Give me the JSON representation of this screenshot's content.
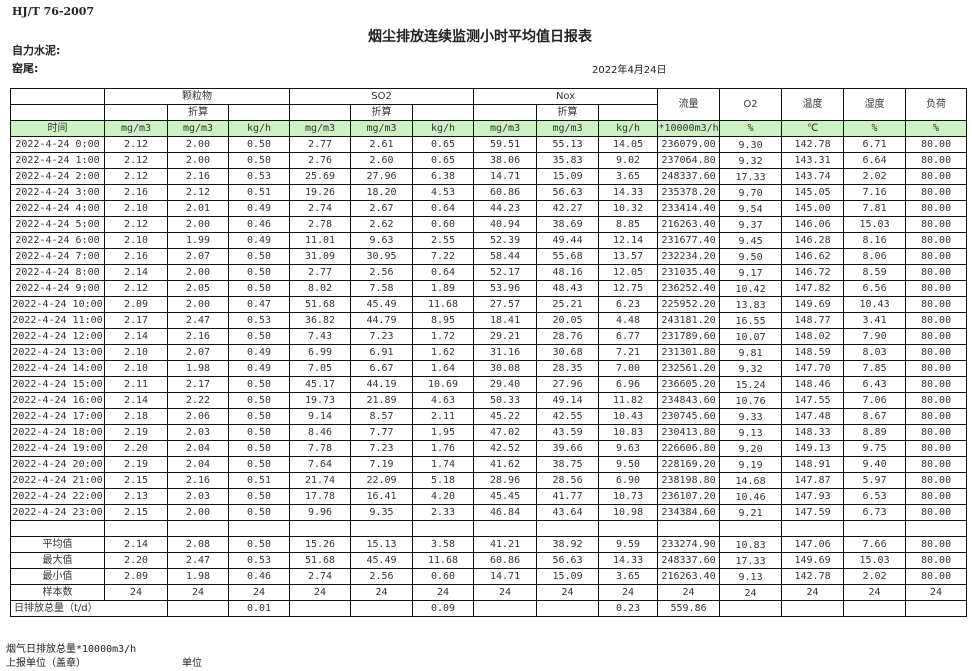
{
  "header": {
    "standard": "HJ/T  76-2007",
    "title": "烟尘排放连续监测小时平均值日报表",
    "company": "自力水泥:",
    "site": "窑尾:",
    "date": "2022年4月24日"
  },
  "table": {
    "groups": [
      "颗粒物",
      "SO2",
      "Nox"
    ],
    "converted": "折算",
    "single_headers": [
      "流量",
      "O2",
      "温度",
      "湿度",
      "负荷"
    ],
    "units": [
      "时间",
      "mg/m3",
      "mg/m3",
      "kg/h",
      "mg/m3",
      "mg/m3",
      "kg/h",
      "mg/m3",
      "mg/m3",
      "kg/h",
      "*10000m3/h",
      "%",
      "℃",
      "%",
      "%"
    ],
    "rows": [
      [
        "2022-4-24 0:00",
        "2.12",
        "2.00",
        "0.50",
        "2.77",
        "2.61",
        "0.65",
        "59.51",
        "55.13",
        "14.05",
        "236079.00",
        "9.30",
        "142.78",
        "6.71",
        "80.00"
      ],
      [
        "2022-4-24 1:00",
        "2.12",
        "2.00",
        "0.50",
        "2.76",
        "2.60",
        "0.65",
        "38.06",
        "35.83",
        "9.02",
        "237064.80",
        "9.32",
        "143.31",
        "6.64",
        "80.00"
      ],
      [
        "2022-4-24 2:00",
        "2.12",
        "2.16",
        "0.53",
        "25.69",
        "27.96",
        "6.38",
        "14.71",
        "15.09",
        "3.65",
        "248337.60",
        "17.33",
        "143.74",
        "2.02",
        "80.00"
      ],
      [
        "2022-4-24 3:00",
        "2.16",
        "2.12",
        "0.51",
        "19.26",
        "18.20",
        "4.53",
        "60.86",
        "56.63",
        "14.33",
        "235378.20",
        "9.70",
        "145.05",
        "7.16",
        "80.00"
      ],
      [
        "2022-4-24 4:00",
        "2.10",
        "2.01",
        "0.49",
        "2.74",
        "2.67",
        "0.64",
        "44.23",
        "42.27",
        "10.32",
        "233414.40",
        "9.54",
        "145.00",
        "7.81",
        "80.00"
      ],
      [
        "2022-4-24 5:00",
        "2.12",
        "2.00",
        "0.46",
        "2.78",
        "2.62",
        "0.60",
        "40.94",
        "38.69",
        "8.85",
        "216263.40",
        "9.37",
        "146.06",
        "15.03",
        "80.00"
      ],
      [
        "2022-4-24 6:00",
        "2.10",
        "1.99",
        "0.49",
        "11.01",
        "9.63",
        "2.55",
        "52.39",
        "49.44",
        "12.14",
        "231677.40",
        "9.45",
        "146.28",
        "8.16",
        "80.00"
      ],
      [
        "2022-4-24 7:00",
        "2.16",
        "2.07",
        "0.50",
        "31.09",
        "30.95",
        "7.22",
        "58.44",
        "55.68",
        "13.57",
        "232234.20",
        "9.50",
        "146.62",
        "8.06",
        "80.00"
      ],
      [
        "2022-4-24 8:00",
        "2.14",
        "2.00",
        "0.50",
        "2.77",
        "2.56",
        "0.64",
        "52.17",
        "48.16",
        "12.05",
        "231035.40",
        "9.17",
        "146.72",
        "8.59",
        "80.00"
      ],
      [
        "2022-4-24 9:00",
        "2.12",
        "2.05",
        "0.50",
        "8.02",
        "7.58",
        "1.89",
        "53.96",
        "48.43",
        "12.75",
        "236252.40",
        "10.42",
        "147.82",
        "6.56",
        "80.00"
      ],
      [
        "2022-4-24 10:00",
        "2.09",
        "2.00",
        "0.47",
        "51.68",
        "45.49",
        "11.68",
        "27.57",
        "25.21",
        "6.23",
        "225952.20",
        "13.83",
        "149.69",
        "10.43",
        "80.00"
      ],
      [
        "2022-4-24 11:00",
        "2.17",
        "2.47",
        "0.53",
        "36.82",
        "44.79",
        "8.95",
        "18.41",
        "20.05",
        "4.48",
        "243181.20",
        "16.55",
        "148.77",
        "3.41",
        "80.00"
      ],
      [
        "2022-4-24 12:00",
        "2.14",
        "2.16",
        "0.50",
        "7.43",
        "7.23",
        "1.72",
        "29.21",
        "28.76",
        "6.77",
        "231789.60",
        "10.07",
        "148.02",
        "7.90",
        "80.00"
      ],
      [
        "2022-4-24 13:00",
        "2.10",
        "2.07",
        "0.49",
        "6.99",
        "6.91",
        "1.62",
        "31.16",
        "30.68",
        "7.21",
        "231301.80",
        "9.81",
        "148.59",
        "8.03",
        "80.00"
      ],
      [
        "2022-4-24 14:00",
        "2.10",
        "1.98",
        "0.49",
        "7.05",
        "6.67",
        "1.64",
        "30.08",
        "28.35",
        "7.00",
        "232561.20",
        "9.32",
        "147.70",
        "7.85",
        "80.00"
      ],
      [
        "2022-4-24 15:00",
        "2.11",
        "2.17",
        "0.50",
        "45.17",
        "44.19",
        "10.69",
        "29.40",
        "27.96",
        "6.96",
        "236605.20",
        "15.24",
        "148.46",
        "6.43",
        "80.00"
      ],
      [
        "2022-4-24 16:00",
        "2.14",
        "2.22",
        "0.50",
        "19.73",
        "21.89",
        "4.63",
        "50.33",
        "49.14",
        "11.82",
        "234843.60",
        "10.76",
        "147.55",
        "7.06",
        "80.00"
      ],
      [
        "2022-4-24 17:00",
        "2.18",
        "2.06",
        "0.50",
        "9.14",
        "8.57",
        "2.11",
        "45.22",
        "42.55",
        "10.43",
        "230745.60",
        "9.33",
        "147.48",
        "8.67",
        "80.00"
      ],
      [
        "2022-4-24 18:00",
        "2.19",
        "2.03",
        "0.50",
        "8.46",
        "7.77",
        "1.95",
        "47.02",
        "43.59",
        "10.83",
        "230413.80",
        "9.13",
        "148.33",
        "8.89",
        "80.00"
      ],
      [
        "2022-4-24 19:00",
        "2.20",
        "2.04",
        "0.50",
        "7.78",
        "7.23",
        "1.76",
        "42.52",
        "39.66",
        "9.63",
        "226606.80",
        "9.20",
        "149.13",
        "9.75",
        "80.00"
      ],
      [
        "2022-4-24 20:00",
        "2.19",
        "2.04",
        "0.50",
        "7.64",
        "7.19",
        "1.74",
        "41.62",
        "38.75",
        "9.50",
        "228169.20",
        "9.19",
        "148.91",
        "9.40",
        "80.00"
      ],
      [
        "2022-4-24 21:00",
        "2.15",
        "2.16",
        "0.51",
        "21.74",
        "22.09",
        "5.18",
        "28.96",
        "28.56",
        "6.90",
        "238198.80",
        "14.68",
        "147.87",
        "5.97",
        "80.00"
      ],
      [
        "2022-4-24 22:00",
        "2.13",
        "2.03",
        "0.50",
        "17.78",
        "16.41",
        "4.20",
        "45.45",
        "41.77",
        "10.73",
        "236107.20",
        "10.46",
        "147.93",
        "6.53",
        "80.00"
      ],
      [
        "2022-4-24 23:00",
        "2.15",
        "2.00",
        "0.50",
        "9.96",
        "9.35",
        "2.33",
        "46.84",
        "43.64",
        "10.98",
        "234384.60",
        "9.21",
        "147.59",
        "6.73",
        "80.00"
      ]
    ],
    "summary": [
      [
        "平均值",
        "2.14",
        "2.08",
        "0.50",
        "15.26",
        "15.13",
        "3.58",
        "41.21",
        "38.92",
        "9.59",
        "233274.90",
        "10.83",
        "147.06",
        "7.66",
        "80.00"
      ],
      [
        "最大值",
        "2.20",
        "2.47",
        "0.53",
        "51.68",
        "45.49",
        "11.68",
        "60.86",
        "56.63",
        "14.33",
        "248337.60",
        "17.33",
        "149.69",
        "15.03",
        "80.00"
      ],
      [
        "最小值",
        "2.09",
        "1.98",
        "0.46",
        "2.74",
        "2.56",
        "0.60",
        "14.71",
        "15.09",
        "3.65",
        "216263.40",
        "9.13",
        "142.78",
        "2.02",
        "80.00"
      ],
      [
        "样本数",
        "24",
        "24",
        "24",
        "24",
        "24",
        "24",
        "24",
        "24",
        "24",
        "24",
        "24",
        "24",
        "24",
        "24"
      ]
    ],
    "daily_total": {
      "label": "日排放总量（t/d）",
      "pm": "0.01",
      "so2": "0.09",
      "nox": "0.23",
      "flow": "559.86"
    }
  },
  "footer": {
    "flue_gas_total": "烟气日排放总量*10000m3/h",
    "reporter": "上报单位（盖章）",
    "unit": "单位"
  }
}
